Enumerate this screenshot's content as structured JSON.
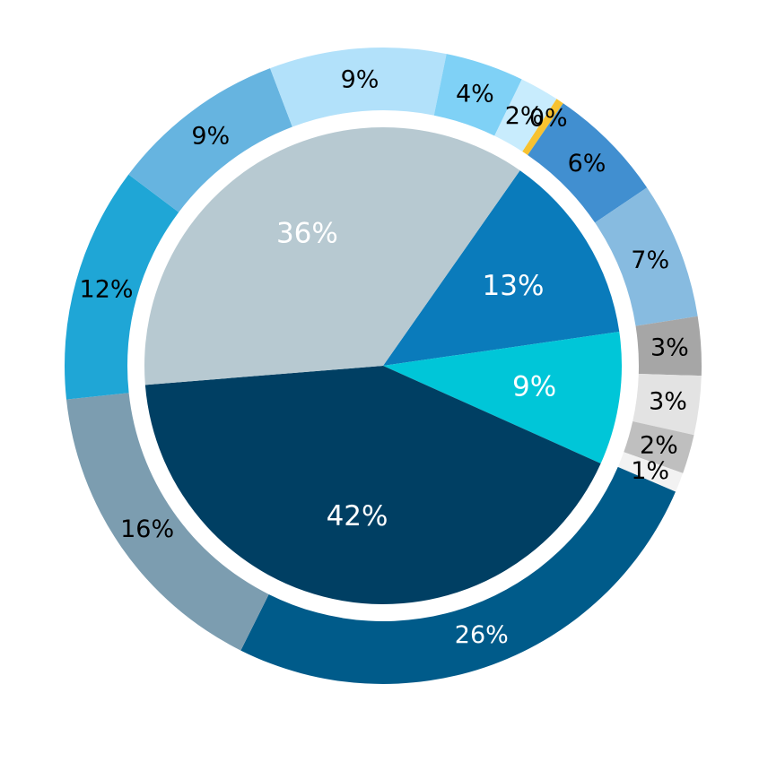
{
  "chart_data": [
    {
      "type": "pie",
      "ring": "inner",
      "title": "",
      "slices": [
        {
          "label": "13%",
          "value": 13,
          "color": "#0a7bbb",
          "label_color": "#ffffff"
        },
        {
          "label": "9%",
          "value": 9,
          "color": "#00c6d8",
          "label_color": "#ffffff"
        },
        {
          "label": "42%",
          "value": 42,
          "color": "#003f63",
          "label_color": "#ffffff"
        },
        {
          "label": "36%",
          "value": 36,
          "color": "#b7c9d1",
          "label_color": "#ffffff"
        }
      ]
    },
    {
      "type": "pie",
      "ring": "outer",
      "title": "",
      "slices": [
        {
          "label": "0%",
          "value": 0.4,
          "color": "#f7c230",
          "label_color": "#000000"
        },
        {
          "label": "6%",
          "value": 6,
          "color": "#418fd0",
          "label_color": "#000000"
        },
        {
          "label": "7%",
          "value": 7,
          "color": "#87bbe0",
          "label_color": "#000000"
        },
        {
          "label": "3%",
          "value": 3,
          "color": "#a6a6a6",
          "label_color": "#000000"
        },
        {
          "label": "3%",
          "value": 3,
          "color": "#e3e3e3",
          "label_color": "#000000"
        },
        {
          "label": "2%",
          "value": 2,
          "color": "#bfbfbf",
          "label_color": "#000000"
        },
        {
          "label": "1%",
          "value": 1,
          "color": "#f2f2f2",
          "label_color": "#000000"
        },
        {
          "label": "26%",
          "value": 26,
          "color": "#005b8a",
          "label_color": "#ffffff"
        },
        {
          "label": "16%",
          "value": 16,
          "color": "#7c9db0",
          "label_color": "#000000"
        },
        {
          "label": "12%",
          "value": 12,
          "color": "#1fa6d6",
          "label_color": "#000000"
        },
        {
          "label": "9%",
          "value": 9,
          "color": "#66b4e0",
          "label_color": "#000000"
        },
        {
          "label": "9%",
          "value": 9,
          "color": "#b2e1fa",
          "label_color": "#000000"
        },
        {
          "label": "4%",
          "value": 4,
          "color": "#7fd1f6",
          "label_color": "#000000"
        },
        {
          "label": "2%",
          "value": 2,
          "color": "#c8ecfd",
          "label_color": "#000000"
        }
      ]
    }
  ]
}
